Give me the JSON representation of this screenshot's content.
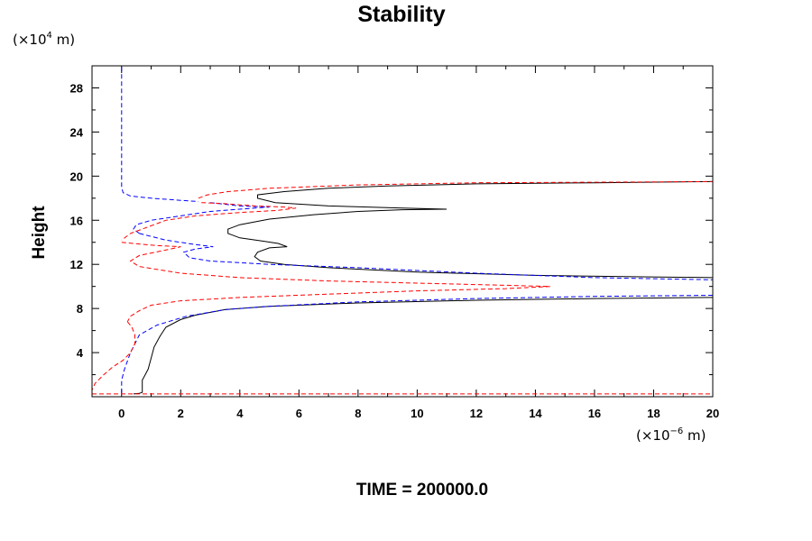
{
  "chart_data": {
    "type": "line",
    "title": "Stability",
    "xlabel": "",
    "ylabel": "Height",
    "x_unit": {
      "prefix": "(×10",
      "exponent": "−6",
      "suffix": " m)"
    },
    "y_unit": {
      "prefix": "(×10",
      "exponent": "4",
      "suffix": " m)"
    },
    "xlim": [
      -1,
      20
    ],
    "ylim": [
      0,
      30
    ],
    "x_ticks": [
      0,
      2,
      4,
      6,
      8,
      10,
      12,
      14,
      16,
      18,
      20
    ],
    "x_tick_labels": [
      "0",
      "2",
      "4",
      "6",
      "8",
      "10",
      "12",
      "14",
      "16",
      "18",
      "20"
    ],
    "y_ticks": [
      4,
      8,
      12,
      16,
      20,
      24,
      28
    ],
    "y_tick_labels": [
      "4",
      "8",
      "12",
      "16",
      "20",
      "24",
      "28"
    ],
    "grid": false,
    "footer": "TIME = 200000.0",
    "series": [
      {
        "color": "#000000",
        "dash": "solid",
        "segments": [
          [
            [
              0.4,
              0.25
            ],
            [
              0.6,
              0.3
            ],
            [
              0.7,
              0.4
            ],
            [
              0.7,
              1.0
            ],
            [
              0.7,
              1.5
            ],
            [
              0.8,
              2.0
            ],
            [
              0.9,
              2.5
            ],
            [
              1.0,
              3.5
            ],
            [
              1.1,
              4.5
            ],
            [
              1.3,
              5.5
            ],
            [
              1.5,
              6.3
            ],
            [
              2.0,
              7.0
            ],
            [
              2.5,
              7.4
            ],
            [
              3.5,
              7.9
            ],
            [
              5,
              8.2
            ],
            [
              8,
              8.5
            ],
            [
              12,
              8.75
            ],
            [
              16,
              8.9
            ],
            [
              20,
              9.0
            ]
          ],
          [
            [
              20,
              10.8
            ],
            [
              17,
              10.9
            ],
            [
              14,
              11.0
            ],
            [
              10,
              11.3
            ],
            [
              7,
              11.7
            ],
            [
              5.5,
              12.0
            ],
            [
              4.7,
              12.3
            ],
            [
              4.5,
              12.7
            ],
            [
              4.6,
              13.1
            ],
            [
              5.0,
              13.5
            ],
            [
              5.6,
              13.6
            ],
            [
              5.3,
              13.9
            ],
            [
              4.8,
              14.1
            ],
            [
              4.0,
              14.4
            ],
            [
              3.6,
              14.8
            ],
            [
              3.6,
              15.2
            ],
            [
              4.0,
              15.6
            ],
            [
              5.0,
              16.1
            ],
            [
              6.5,
              16.5
            ],
            [
              8.0,
              16.8
            ],
            [
              9.5,
              16.95
            ],
            [
              11.0,
              17.0
            ],
            [
              9.5,
              17.1
            ],
            [
              7.0,
              17.3
            ],
            [
              5.2,
              17.6
            ],
            [
              4.6,
              18.0
            ],
            [
              4.6,
              18.3
            ],
            [
              5.5,
              18.6
            ],
            [
              7.0,
              18.9
            ],
            [
              9.0,
              19.1
            ],
            [
              12,
              19.3
            ],
            [
              16,
              19.4
            ],
            [
              20,
              19.5
            ]
          ]
        ]
      },
      {
        "color": "#0000ff",
        "dash": "dashed",
        "segments": [
          [
            [
              0,
              29.9
            ],
            [
              0,
              24
            ],
            [
              0,
              20
            ],
            [
              0,
              19
            ],
            [
              0.05,
              18.5
            ],
            [
              0.3,
              18.2
            ],
            [
              1.0,
              18.0
            ],
            [
              2.0,
              17.8
            ],
            [
              2.6,
              17.7
            ]
          ],
          [
            [
              3.0,
              17.6
            ],
            [
              4.0,
              17.3
            ],
            [
              5.0,
              17.2
            ],
            [
              4.0,
              17.0
            ],
            [
              3.0,
              16.8
            ],
            [
              2.0,
              16.4
            ],
            [
              1.0,
              16.0
            ],
            [
              0.5,
              15.6
            ],
            [
              0.4,
              15.2
            ],
            [
              0.6,
              14.8
            ]
          ],
          [
            [
              0.6,
              14.8
            ],
            [
              1.5,
              14.2
            ],
            [
              2.5,
              13.8
            ],
            [
              3.1,
              13.6
            ],
            [
              2.5,
              13.4
            ],
            [
              2.1,
              13.1
            ],
            [
              2.3,
              12.6
            ],
            [
              3.0,
              12.3
            ],
            [
              5.0,
              12.0
            ],
            [
              8,
              11.7
            ],
            [
              12,
              11.2
            ],
            [
              16,
              10.8
            ],
            [
              20,
              10.6
            ]
          ],
          [
            [
              20,
              9.2
            ],
            [
              16,
              9.1
            ],
            [
              12,
              8.9
            ],
            [
              8,
              8.6
            ],
            [
              5,
              8.2
            ],
            [
              3.5,
              7.9
            ],
            [
              2.2,
              7.3
            ],
            [
              1.2,
              6.5
            ],
            [
              0.6,
              5.6
            ],
            [
              0.3,
              4.0
            ],
            [
              0.1,
              2.5
            ],
            [
              0,
              1.5
            ],
            [
              0,
              0.5
            ],
            [
              0,
              0.2
            ]
          ]
        ]
      },
      {
        "color": "#ff0000",
        "dash": "dashed",
        "segments": [
          [
            [
              2.6,
              18.0
            ],
            [
              2.9,
              18.3
            ],
            [
              3.6,
              18.6
            ],
            [
              5,
              18.9
            ],
            [
              8,
              19.2
            ],
            [
              12,
              19.4
            ],
            [
              16,
              19.45
            ],
            [
              20,
              19.5
            ]
          ],
          [
            [
              2.7,
              17.6
            ],
            [
              3.5,
              17.5
            ],
            [
              4.5,
              17.3
            ],
            [
              5.5,
              17.2
            ],
            [
              5.9,
              17.1
            ],
            [
              5.3,
              16.9
            ],
            [
              4.0,
              16.7
            ],
            [
              2.5,
              16.4
            ],
            [
              1.5,
              16.0
            ],
            [
              0.8,
              15.3
            ],
            [
              0.3,
              14.8
            ],
            [
              0,
              14.2
            ]
          ],
          [
            [
              0,
              14.0
            ],
            [
              0.4,
              13.9
            ],
            [
              1.2,
              13.7
            ],
            [
              2.0,
              13.6
            ],
            [
              1.5,
              13.3
            ],
            [
              0.6,
              12.8
            ],
            [
              0.3,
              12.3
            ],
            [
              0.6,
              11.8
            ],
            [
              2.0,
              11.2
            ],
            [
              4,
              10.8
            ],
            [
              7,
              10.5
            ],
            [
              10,
              10.3
            ],
            [
              13,
              10.1
            ],
            [
              14.5,
              10.0
            ],
            [
              13,
              9.8
            ],
            [
              10,
              9.6
            ],
            [
              7,
              9.3
            ],
            [
              4,
              9.0
            ],
            [
              2.0,
              8.7
            ],
            [
              1.0,
              8.3
            ],
            [
              0.6,
              7.8
            ],
            [
              0.3,
              7.3
            ],
            [
              0.2,
              6.8
            ]
          ],
          [
            [
              0.2,
              6.8
            ],
            [
              0.35,
              6.3
            ],
            [
              0.45,
              5.6
            ],
            [
              0.45,
              4.8
            ],
            [
              0.3,
              4.0
            ],
            [
              0.05,
              3.3
            ],
            [
              -0.3,
              2.7
            ],
            [
              -0.6,
              2.0
            ],
            [
              -0.9,
              1.2
            ],
            [
              -1.0,
              0.6
            ]
          ],
          [
            [
              -1.0,
              0.25
            ],
            [
              0,
              0.25
            ],
            [
              4,
              0.25
            ],
            [
              8,
              0.25
            ],
            [
              12,
              0.25
            ],
            [
              16,
              0.25
            ],
            [
              20,
              0.25
            ]
          ]
        ]
      }
    ]
  }
}
